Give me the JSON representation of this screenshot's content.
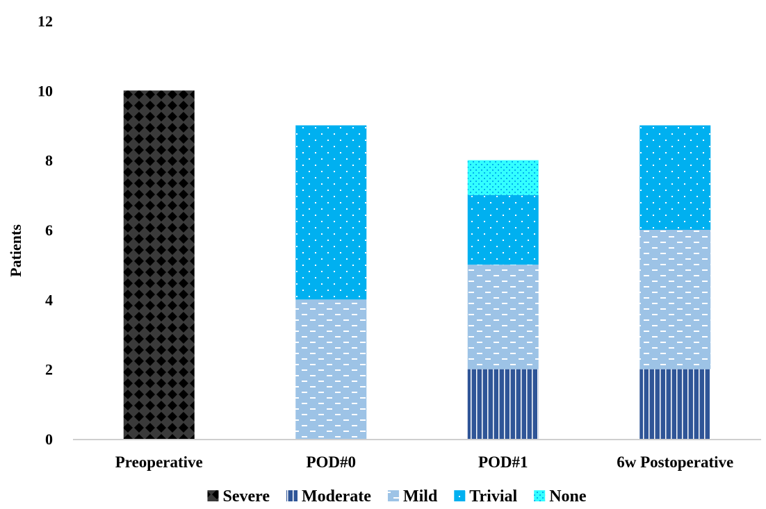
{
  "chart_data": {
    "type": "bar",
    "stacked": true,
    "categories": [
      "Preoperative",
      "POD#0",
      "POD#1",
      "6w Postoperative"
    ],
    "series": [
      {
        "name": "Severe",
        "values": [
          10,
          0,
          0,
          0
        ],
        "color": "#3a3a3a",
        "pattern": "diamond"
      },
      {
        "name": "Moderate",
        "values": [
          0,
          0,
          2,
          2
        ],
        "color": "#2f5597",
        "pattern": "vertical-lines"
      },
      {
        "name": "Mild",
        "values": [
          0,
          4,
          3,
          4
        ],
        "color": "#9dc3e6",
        "pattern": "dashes"
      },
      {
        "name": "Trivial",
        "values": [
          0,
          5,
          2,
          3
        ],
        "color": "#00b0f0",
        "pattern": "dots"
      },
      {
        "name": "None",
        "values": [
          0,
          0,
          1,
          0
        ],
        "color": "#33ffff",
        "pattern": "checker"
      }
    ],
    "ylabel": "Patients",
    "xlabel": "",
    "ylim": [
      0,
      12
    ],
    "yticks": [
      "0",
      "2",
      "4",
      "6",
      "8",
      "10",
      "12"
    ],
    "grid": false,
    "legend": "bottom"
  }
}
